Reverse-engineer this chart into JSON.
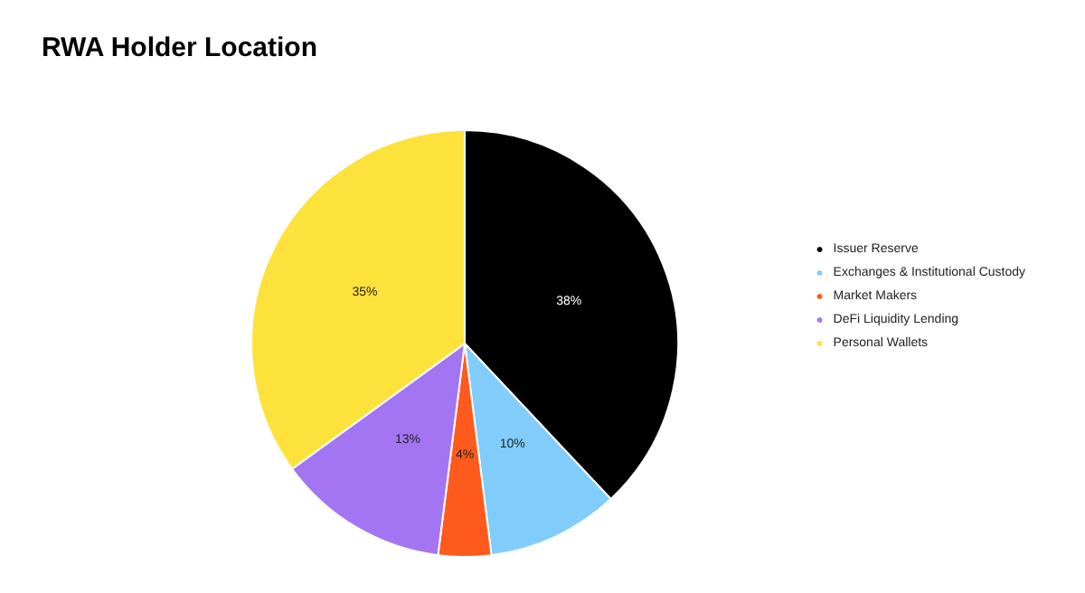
{
  "chart_data": {
    "type": "pie",
    "title": "RWA Holder Location",
    "categories": [
      "Issuer Reserve",
      "Exchanges & Institutional Custody",
      "Market Makers",
      "DeFi Liquidity Lending",
      "Personal Wallets"
    ],
    "values": [
      38,
      10,
      4,
      13,
      35
    ],
    "colors": [
      "#000000",
      "#80cdfc",
      "#ff5a1e",
      "#a475f2",
      "#fde23c"
    ],
    "value_labels": [
      "38%",
      "10%",
      "4%",
      "13%",
      "35%"
    ],
    "legend": "right"
  }
}
